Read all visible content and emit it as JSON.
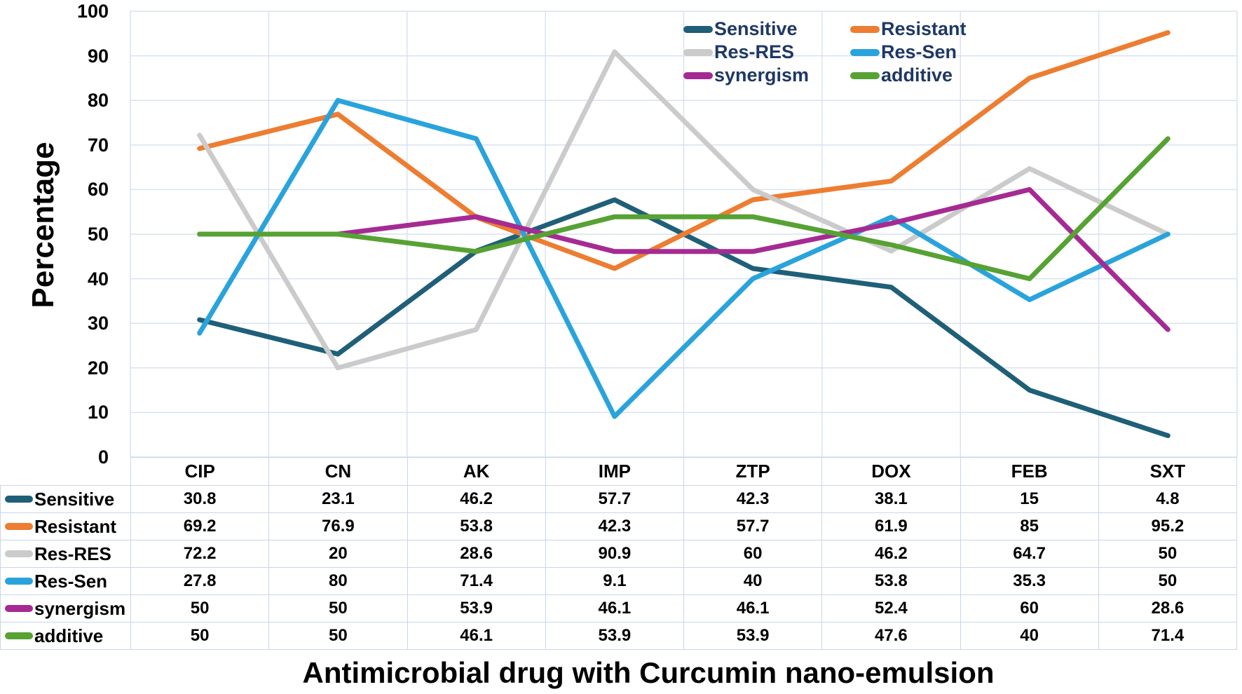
{
  "chart_data": {
    "type": "line",
    "title": "",
    "xlabel": "Antimicrobial drug with Curcumin nano-emulsion",
    "ylabel": "Percentage",
    "ylim": [
      0,
      100
    ],
    "yticks": [
      0,
      10,
      20,
      30,
      40,
      50,
      60,
      70,
      80,
      90,
      100
    ],
    "grid": true,
    "gridline_color": "#D9E2F1",
    "table_border_color": "#C9D6E8",
    "legend_position": "top-center, 2 columns, inside plot",
    "legend_text_color": "#1F3864",
    "has_data_table": true,
    "categories": [
      "CIP",
      "CN",
      "AK",
      "IMP",
      "ZTP",
      "DOX",
      "FEB",
      "SXT"
    ],
    "series": [
      {
        "name": "Sensitive",
        "color": "#1F5F78",
        "values": [
          30.8,
          23.1,
          46.2,
          57.7,
          42.3,
          38.1,
          15,
          4.8
        ]
      },
      {
        "name": "Resistant",
        "color": "#ED7D31",
        "values": [
          69.2,
          76.9,
          53.8,
          42.3,
          57.7,
          61.9,
          85,
          95.2
        ]
      },
      {
        "name": "Res-RES",
        "color": "#CBCBCB",
        "values": [
          72.2,
          20,
          28.6,
          90.9,
          60,
          46.2,
          64.7,
          50
        ]
      },
      {
        "name": "Res-Sen",
        "color": "#29A3DC",
        "values": [
          27.8,
          80,
          71.4,
          9.1,
          40,
          53.8,
          35.3,
          50
        ]
      },
      {
        "name": "synergism",
        "color": "#A52B93",
        "values": [
          50,
          50,
          53.9,
          46.1,
          46.1,
          52.4,
          60,
          28.6
        ]
      },
      {
        "name": "additive",
        "color": "#56A233",
        "values": [
          50,
          50,
          46.1,
          53.9,
          53.9,
          47.6,
          40,
          71.4
        ]
      }
    ]
  }
}
